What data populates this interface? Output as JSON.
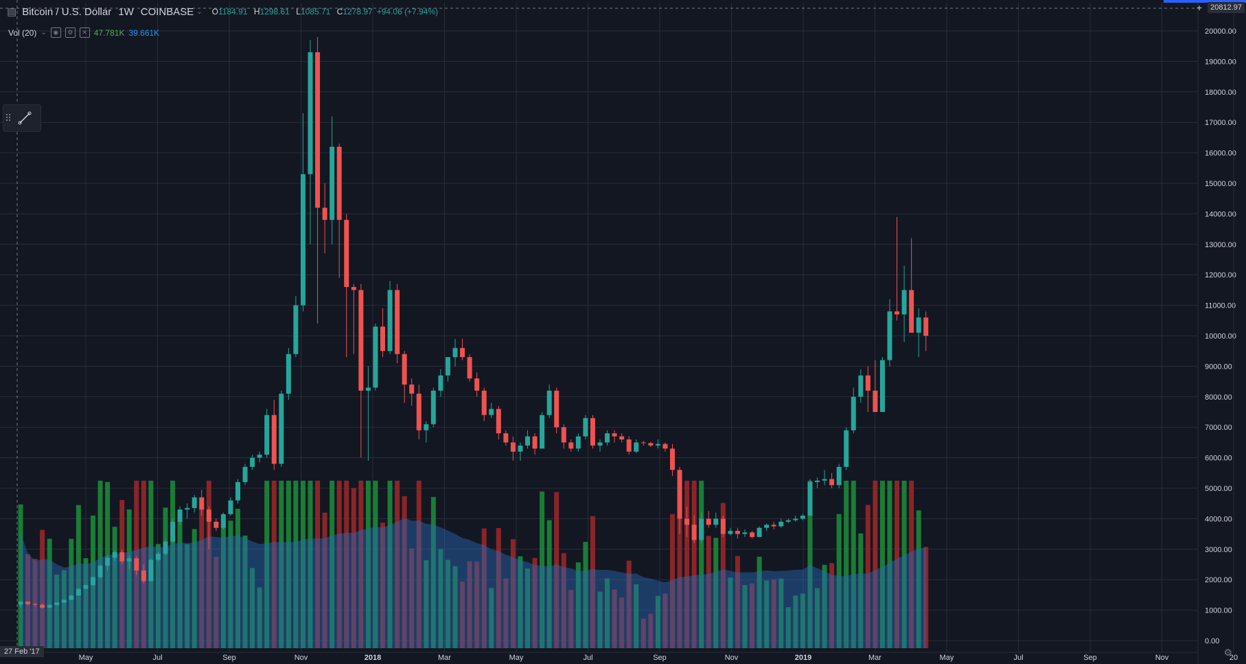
{
  "header": {
    "symbol": "Bitcoin / U.S. Dollar",
    "interval": "1W",
    "exchange": "COINBASE",
    "open_label": "O",
    "open": "1184.91",
    "high_label": "H",
    "high": "1298.61",
    "low_label": "L",
    "low": "1085.71",
    "close_label": "C",
    "close": "1278.97",
    "change": "+94.06 (+7.94%)"
  },
  "volume_legend": {
    "label": "Vol (20)",
    "value1": "47.781K",
    "value2": "39.661K"
  },
  "crosshair_price": "20812.97",
  "crosshair_date": "27 Feb '17",
  "colors": {
    "background": "#131722",
    "up": "#26a69a",
    "down": "#ef5350",
    "vol_up": "#1b8f3a",
    "vol_down": "#a02828",
    "vol_ma": "#2a6ab8",
    "grid": "#2a2e39"
  },
  "icons": [
    "chart-type-icon",
    "eye-icon",
    "settings-icon",
    "close-icon",
    "trend-line-icon",
    "gear-icon",
    "crosshair-icon"
  ],
  "chart_data": {
    "type": "candlestick",
    "title": "Bitcoin / U.S. Dollar",
    "y_ticks": [
      "20000.00",
      "19000.00",
      "18000.00",
      "17000.00",
      "16000.00",
      "15000.00",
      "14000.00",
      "13000.00",
      "12000.00",
      "11000.00",
      "10000.00",
      "9000.00",
      "8000.00",
      "7000.00",
      "6000.00",
      "5000.00",
      "4000.00",
      "3000.00",
      "2000.00",
      "1000.00",
      "0.00"
    ],
    "ylim": [
      0,
      20000
    ],
    "x_ticks": [
      "May",
      "Jul",
      "Sep",
      "Nov",
      "2018",
      "Mar",
      "May",
      "Jul",
      "Sep",
      "Nov",
      "2019",
      "Mar",
      "May",
      "Jul",
      "Sep",
      "Nov",
      "20"
    ],
    "candles": [
      [
        1185,
        1299,
        1086,
        1279
      ],
      [
        1279,
        1290,
        1150,
        1200
      ],
      [
        1200,
        1240,
        1120,
        1180
      ],
      [
        1180,
        1210,
        1050,
        1080
      ],
      [
        1080,
        1200,
        1070,
        1170
      ],
      [
        1170,
        1260,
        1160,
        1250
      ],
      [
        1250,
        1350,
        1240,
        1340
      ],
      [
        1340,
        1500,
        1330,
        1480
      ],
      [
        1480,
        1720,
        1470,
        1700
      ],
      [
        1700,
        1840,
        1680,
        1820
      ],
      [
        1820,
        2100,
        1800,
        2080
      ],
      [
        2080,
        2500,
        2050,
        2460
      ],
      [
        2460,
        2800,
        2300,
        2720
      ],
      [
        2720,
        2980,
        2600,
        2900
      ],
      [
        2900,
        3000,
        2500,
        2600
      ],
      [
        2600,
        2800,
        2350,
        2700
      ],
      [
        2700,
        2760,
        2150,
        2300
      ],
      [
        2300,
        2500,
        1880,
        1950
      ],
      [
        1950,
        2700,
        1940,
        2650
      ],
      [
        2650,
        2900,
        2600,
        2850
      ],
      [
        2850,
        3300,
        2800,
        3250
      ],
      [
        3250,
        4000,
        3200,
        3900
      ],
      [
        3900,
        4400,
        3800,
        4300
      ],
      [
        4300,
        4500,
        4000,
        4350
      ],
      [
        4350,
        4780,
        4200,
        4700
      ],
      [
        4700,
        4950,
        4100,
        4300
      ],
      [
        4300,
        4400,
        3000,
        3900
      ],
      [
        3900,
        4000,
        3600,
        3700
      ],
      [
        3700,
        4200,
        3650,
        4150
      ],
      [
        4150,
        4700,
        4100,
        4600
      ],
      [
        4600,
        5300,
        4500,
        5200
      ],
      [
        5200,
        5800,
        5100,
        5700
      ],
      [
        5700,
        6100,
        5600,
        6000
      ],
      [
        6000,
        6200,
        5850,
        6100
      ],
      [
        6100,
        7600,
        6000,
        7400
      ],
      [
        7400,
        7900,
        5600,
        5800
      ],
      [
        5800,
        8200,
        5700,
        8100
      ],
      [
        8100,
        9600,
        7900,
        9400
      ],
      [
        9400,
        11300,
        9300,
        11000
      ],
      [
        11000,
        17300,
        10800,
        15300
      ],
      [
        15300,
        19700,
        13000,
        19300
      ],
      [
        19300,
        19800,
        10400,
        14200
      ],
      [
        14200,
        15000,
        12700,
        13800
      ],
      [
        13800,
        17200,
        13000,
        16200
      ],
      [
        16200,
        16300,
        11900,
        13800
      ],
      [
        13800,
        14000,
        9300,
        11600
      ],
      [
        11600,
        11700,
        9400,
        11500
      ],
      [
        11500,
        11700,
        6000,
        8200
      ],
      [
        8200,
        9000,
        5900,
        8300
      ],
      [
        8300,
        10400,
        8200,
        10300
      ],
      [
        10300,
        10900,
        9300,
        9500
      ],
      [
        9500,
        11800,
        9400,
        11500
      ],
      [
        11500,
        11700,
        9100,
        9400
      ],
      [
        9400,
        9500,
        7800,
        8400
      ],
      [
        8400,
        8600,
        7700,
        8100
      ],
      [
        8100,
        8400,
        6600,
        6900
      ],
      [
        6900,
        7200,
        6500,
        7100
      ],
      [
        7100,
        8300,
        7000,
        8200
      ],
      [
        8200,
        8900,
        8000,
        8700
      ],
      [
        8700,
        9300,
        8500,
        9300
      ],
      [
        9300,
        9900,
        9000,
        9600
      ],
      [
        9600,
        9900,
        9200,
        9300
      ],
      [
        9300,
        9400,
        8500,
        8600
      ],
      [
        8600,
        8800,
        8000,
        8200
      ],
      [
        8200,
        8300,
        7200,
        7400
      ],
      [
        7400,
        7800,
        7300,
        7600
      ],
      [
        7600,
        7700,
        6600,
        6800
      ],
      [
        6800,
        6900,
        6400,
        6500
      ],
      [
        6500,
        6700,
        5900,
        6200
      ],
      [
        6200,
        6500,
        5900,
        6400
      ],
      [
        6400,
        6900,
        6300,
        6700
      ],
      [
        6700,
        6800,
        6100,
        6300
      ],
      [
        6300,
        7500,
        6300,
        7400
      ],
      [
        7400,
        8400,
        7300,
        8200
      ],
      [
        8200,
        8300,
        6800,
        7000
      ],
      [
        7000,
        7100,
        6300,
        6500
      ],
      [
        6500,
        6600,
        6200,
        6300
      ],
      [
        6300,
        6800,
        6200,
        6700
      ],
      [
        6700,
        7400,
        6600,
        7300
      ],
      [
        7300,
        7400,
        6300,
        6400
      ],
      [
        6400,
        6600,
        6200,
        6500
      ],
      [
        6500,
        6900,
        6400,
        6800
      ],
      [
        6800,
        6900,
        6500,
        6700
      ],
      [
        6700,
        6800,
        6500,
        6600
      ],
      [
        6600,
        6700,
        6100,
        6200
      ],
      [
        6200,
        6600,
        6150,
        6500
      ],
      [
        6500,
        6550,
        6400,
        6480
      ],
      [
        6480,
        6520,
        6350,
        6400
      ],
      [
        6400,
        6600,
        6300,
        6450
      ],
      [
        6450,
        6500,
        6200,
        6300
      ],
      [
        6300,
        6450,
        5400,
        5600
      ],
      [
        5600,
        5700,
        3500,
        4000
      ],
      [
        4000,
        4400,
        3400,
        3800
      ],
      [
        3800,
        4100,
        3200,
        3300
      ],
      [
        3300,
        4200,
        3200,
        4000
      ],
      [
        4000,
        4250,
        3700,
        3800
      ],
      [
        3800,
        4200,
        3700,
        4000
      ],
      [
        4000,
        4100,
        3400,
        3500
      ],
      [
        3500,
        3700,
        3450,
        3600
      ],
      [
        3600,
        3700,
        3350,
        3500
      ],
      [
        3500,
        3650,
        3400,
        3550
      ],
      [
        3550,
        3600,
        3350,
        3400
      ],
      [
        3400,
        3750,
        3400,
        3700
      ],
      [
        3700,
        3850,
        3600,
        3800
      ],
      [
        3800,
        3900,
        3650,
        3750
      ],
      [
        3750,
        4000,
        3700,
        3900
      ],
      [
        3900,
        4000,
        3850,
        3950
      ],
      [
        3950,
        4100,
        3900,
        4000
      ],
      [
        4000,
        4150,
        3950,
        4100
      ],
      [
        4100,
        5300,
        4100,
        5200
      ],
      [
        5200,
        5350,
        5000,
        5250
      ],
      [
        5250,
        5600,
        5100,
        5300
      ],
      [
        5300,
        5500,
        5000,
        5100
      ],
      [
        5100,
        5800,
        5000,
        5700
      ],
      [
        5700,
        7000,
        5600,
        6900
      ],
      [
        6900,
        8300,
        6800,
        8000
      ],
      [
        8000,
        8900,
        7800,
        8700
      ],
      [
        8700,
        9000,
        7500,
        8200
      ],
      [
        8200,
        9200,
        7500,
        7500
      ],
      [
        7500,
        9300,
        7500,
        9200
      ],
      [
        9200,
        11200,
        9000,
        10800
      ],
      [
        10800,
        13900,
        10500,
        10700
      ],
      [
        10700,
        12300,
        9800,
        11500
      ],
      [
        11500,
        13200,
        10200,
        10100
      ],
      [
        10100,
        10900,
        9300,
        10600
      ],
      [
        10600,
        10800,
        9500,
        10000
      ]
    ],
    "volume_scale_max": 13500
  }
}
